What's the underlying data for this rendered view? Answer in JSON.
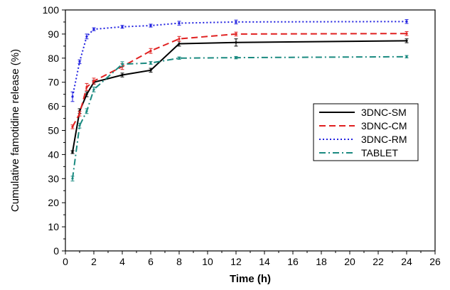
{
  "chart_data": {
    "type": "line",
    "xlabel": "Time (h)",
    "ylabel": "Cumulative famotidine release (%)",
    "xlim": [
      0,
      26
    ],
    "ylim": [
      0,
      100
    ],
    "x_ticks": [
      0,
      2,
      4,
      6,
      8,
      10,
      12,
      14,
      16,
      18,
      20,
      22,
      24,
      26
    ],
    "y_ticks": [
      0,
      10,
      20,
      30,
      40,
      50,
      60,
      70,
      80,
      90,
      100
    ],
    "grid": false,
    "legend_position": "right",
    "series": [
      {
        "name": "3DNC-SM",
        "color": "#000000",
        "dash": "solid",
        "x": [
          0.5,
          1,
          1.5,
          2,
          4,
          6,
          8,
          12,
          24
        ],
        "y": [
          41,
          58,
          65,
          70,
          73,
          75,
          86,
          86.5,
          87.2
        ],
        "err": [
          0.6,
          1.0,
          1.0,
          0.8,
          0.8,
          0.8,
          1.0,
          1.5,
          0.8
        ]
      },
      {
        "name": "3DNC-CM",
        "color": "#e02020",
        "dash": "dash",
        "x": [
          0.5,
          1,
          1.5,
          2,
          4,
          6,
          8,
          12,
          24
        ],
        "y": [
          51.5,
          57,
          68,
          70.5,
          76.5,
          83,
          88,
          90,
          90.2
        ],
        "err": [
          0.8,
          1.0,
          1.5,
          1.2,
          1.2,
          1.0,
          1.0,
          0.8,
          0.8
        ]
      },
      {
        "name": "3DNC-RM",
        "color": "#2020e0",
        "dash": "dot",
        "x": [
          0.5,
          1,
          1.5,
          2,
          4,
          6,
          8,
          12,
          24
        ],
        "y": [
          64,
          78.5,
          89,
          92,
          93,
          93.5,
          94.5,
          95,
          95.2
        ],
        "err": [
          2.0,
          0.8,
          1.0,
          0.6,
          0.6,
          0.6,
          0.8,
          0.8,
          0.8
        ]
      },
      {
        "name": "TABLET",
        "color": "#1a8a80",
        "dash": "dashdot",
        "x": [
          0.5,
          1,
          1.5,
          2,
          4,
          6,
          8,
          12,
          24
        ],
        "y": [
          30,
          52,
          58,
          67,
          77.5,
          78,
          80,
          80.2,
          80.6
        ],
        "err": [
          1.0,
          1.0,
          1.0,
          1.0,
          1.0,
          0.6,
          0.5,
          0.5,
          0.5
        ]
      }
    ]
  }
}
